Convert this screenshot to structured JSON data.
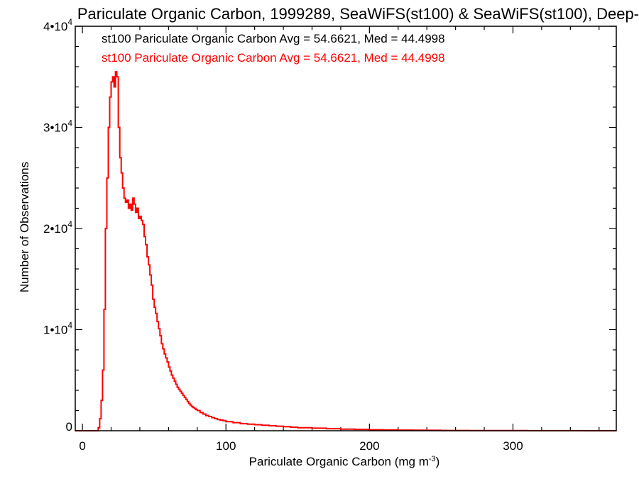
{
  "chart_data": {
    "type": "line",
    "title": "Pariculate Organic Carbon, 1999289, SeaWiFS(st100) & SeaWiFS(st100), Deep-",
    "xlabel": "Pariculate Organic Carbon (mg m",
    "xlabel_sup": "-3",
    "xlabel_end": ")",
    "ylabel": "Number of Observations",
    "xlim": [
      -5,
      372
    ],
    "ylim": [
      0,
      40000
    ],
    "x_ticks": [
      0,
      100,
      200,
      300
    ],
    "x_tick_labels": [
      "0",
      "100",
      "200",
      "300"
    ],
    "y_ticks": [
      0,
      10000,
      20000,
      30000,
      40000
    ],
    "y_tick_labels": [
      {
        "base": "0",
        "exp": ""
      },
      {
        "base": "1•10",
        "exp": "4"
      },
      {
        "base": "2•10",
        "exp": "4"
      },
      {
        "base": "3•10",
        "exp": "4"
      },
      {
        "base": "4•10",
        "exp": "4"
      }
    ],
    "grid": false,
    "annotations": [
      {
        "text": "st100 Pariculate Organic Carbon Avg = 54.6621, Med = 44.4998",
        "color": "#000000"
      },
      {
        "text": "st100 Pariculate Organic Carbon Avg = 54.6621, Med = 44.4998",
        "color": "#ff0000"
      }
    ],
    "series": [
      {
        "color": "#ff0000",
        "bin_width": 1,
        "x": [
          10,
          11,
          12,
          13,
          14,
          15,
          16,
          17,
          18,
          19,
          20,
          21,
          22,
          23,
          24,
          25,
          26,
          27,
          28,
          29,
          30,
          31,
          32,
          33,
          34,
          35,
          36,
          37,
          38,
          39,
          40,
          41,
          42,
          43,
          44,
          45,
          46,
          47,
          48,
          49,
          50,
          51,
          52,
          53,
          54,
          55,
          56,
          57,
          58,
          59,
          60,
          61,
          62,
          63,
          64,
          65,
          66,
          67,
          68,
          69,
          70,
          71,
          72,
          73,
          74,
          75,
          76,
          77,
          78,
          79,
          80,
          82,
          84,
          86,
          88,
          90,
          92,
          94,
          96,
          98,
          100,
          105,
          110,
          115,
          120,
          125,
          130,
          135,
          140,
          145,
          150,
          160,
          170,
          180,
          190,
          200,
          210,
          220,
          230,
          240,
          250,
          270,
          290,
          310,
          330,
          350,
          372
        ],
        "y": [
          0,
          300,
          1200,
          3000,
          6000,
          12000,
          20000,
          25000,
          30000,
          33000,
          34500,
          35000,
          34000,
          35500,
          35000,
          30000,
          27000,
          25500,
          24000,
          23000,
          22600,
          22800,
          22000,
          22400,
          21800,
          23000,
          22400,
          21600,
          22000,
          21000,
          21200,
          20800,
          20400,
          19200,
          18400,
          17200,
          16400,
          15400,
          14400,
          13000,
          12200,
          11600,
          10800,
          10100,
          9400,
          8600,
          8100,
          7600,
          7200,
          6800,
          6300,
          5900,
          5500,
          5200,
          4900,
          4600,
          4300,
          4100,
          3900,
          3700,
          3500,
          3300,
          3100,
          2900,
          2700,
          2550,
          2400,
          2300,
          2200,
          2100,
          2000,
          1800,
          1650,
          1500,
          1400,
          1300,
          1200,
          1100,
          1050,
          1000,
          900,
          800,
          700,
          650,
          600,
          550,
          500,
          450,
          400,
          350,
          300,
          250,
          200,
          160,
          130,
          100,
          80,
          60,
          50,
          40,
          30,
          20,
          15,
          10,
          5,
          0,
          0
        ]
      }
    ]
  }
}
